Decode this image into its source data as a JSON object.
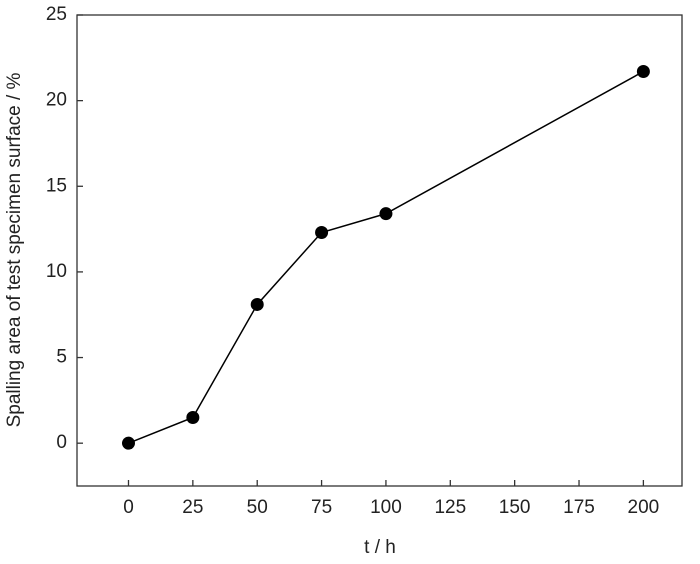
{
  "chart_data": {
    "type": "line",
    "x_label": "t / h",
    "y_label": "Spalling area of test specimen surface / %",
    "x": [
      0,
      25,
      50,
      75,
      100,
      200
    ],
    "series": [
      {
        "values": [
          0,
          1.5,
          8.1,
          12.3,
          13.4,
          21.7
        ],
        "color": "#000000"
      }
    ],
    "xlim": [
      -20,
      215
    ],
    "xticks": [
      0,
      25,
      50,
      75,
      100,
      125,
      150,
      175,
      200
    ],
    "ylim": [
      -2.5,
      25
    ],
    "yticks": [
      0,
      5,
      10,
      15,
      20,
      25
    ],
    "grid": false
  }
}
